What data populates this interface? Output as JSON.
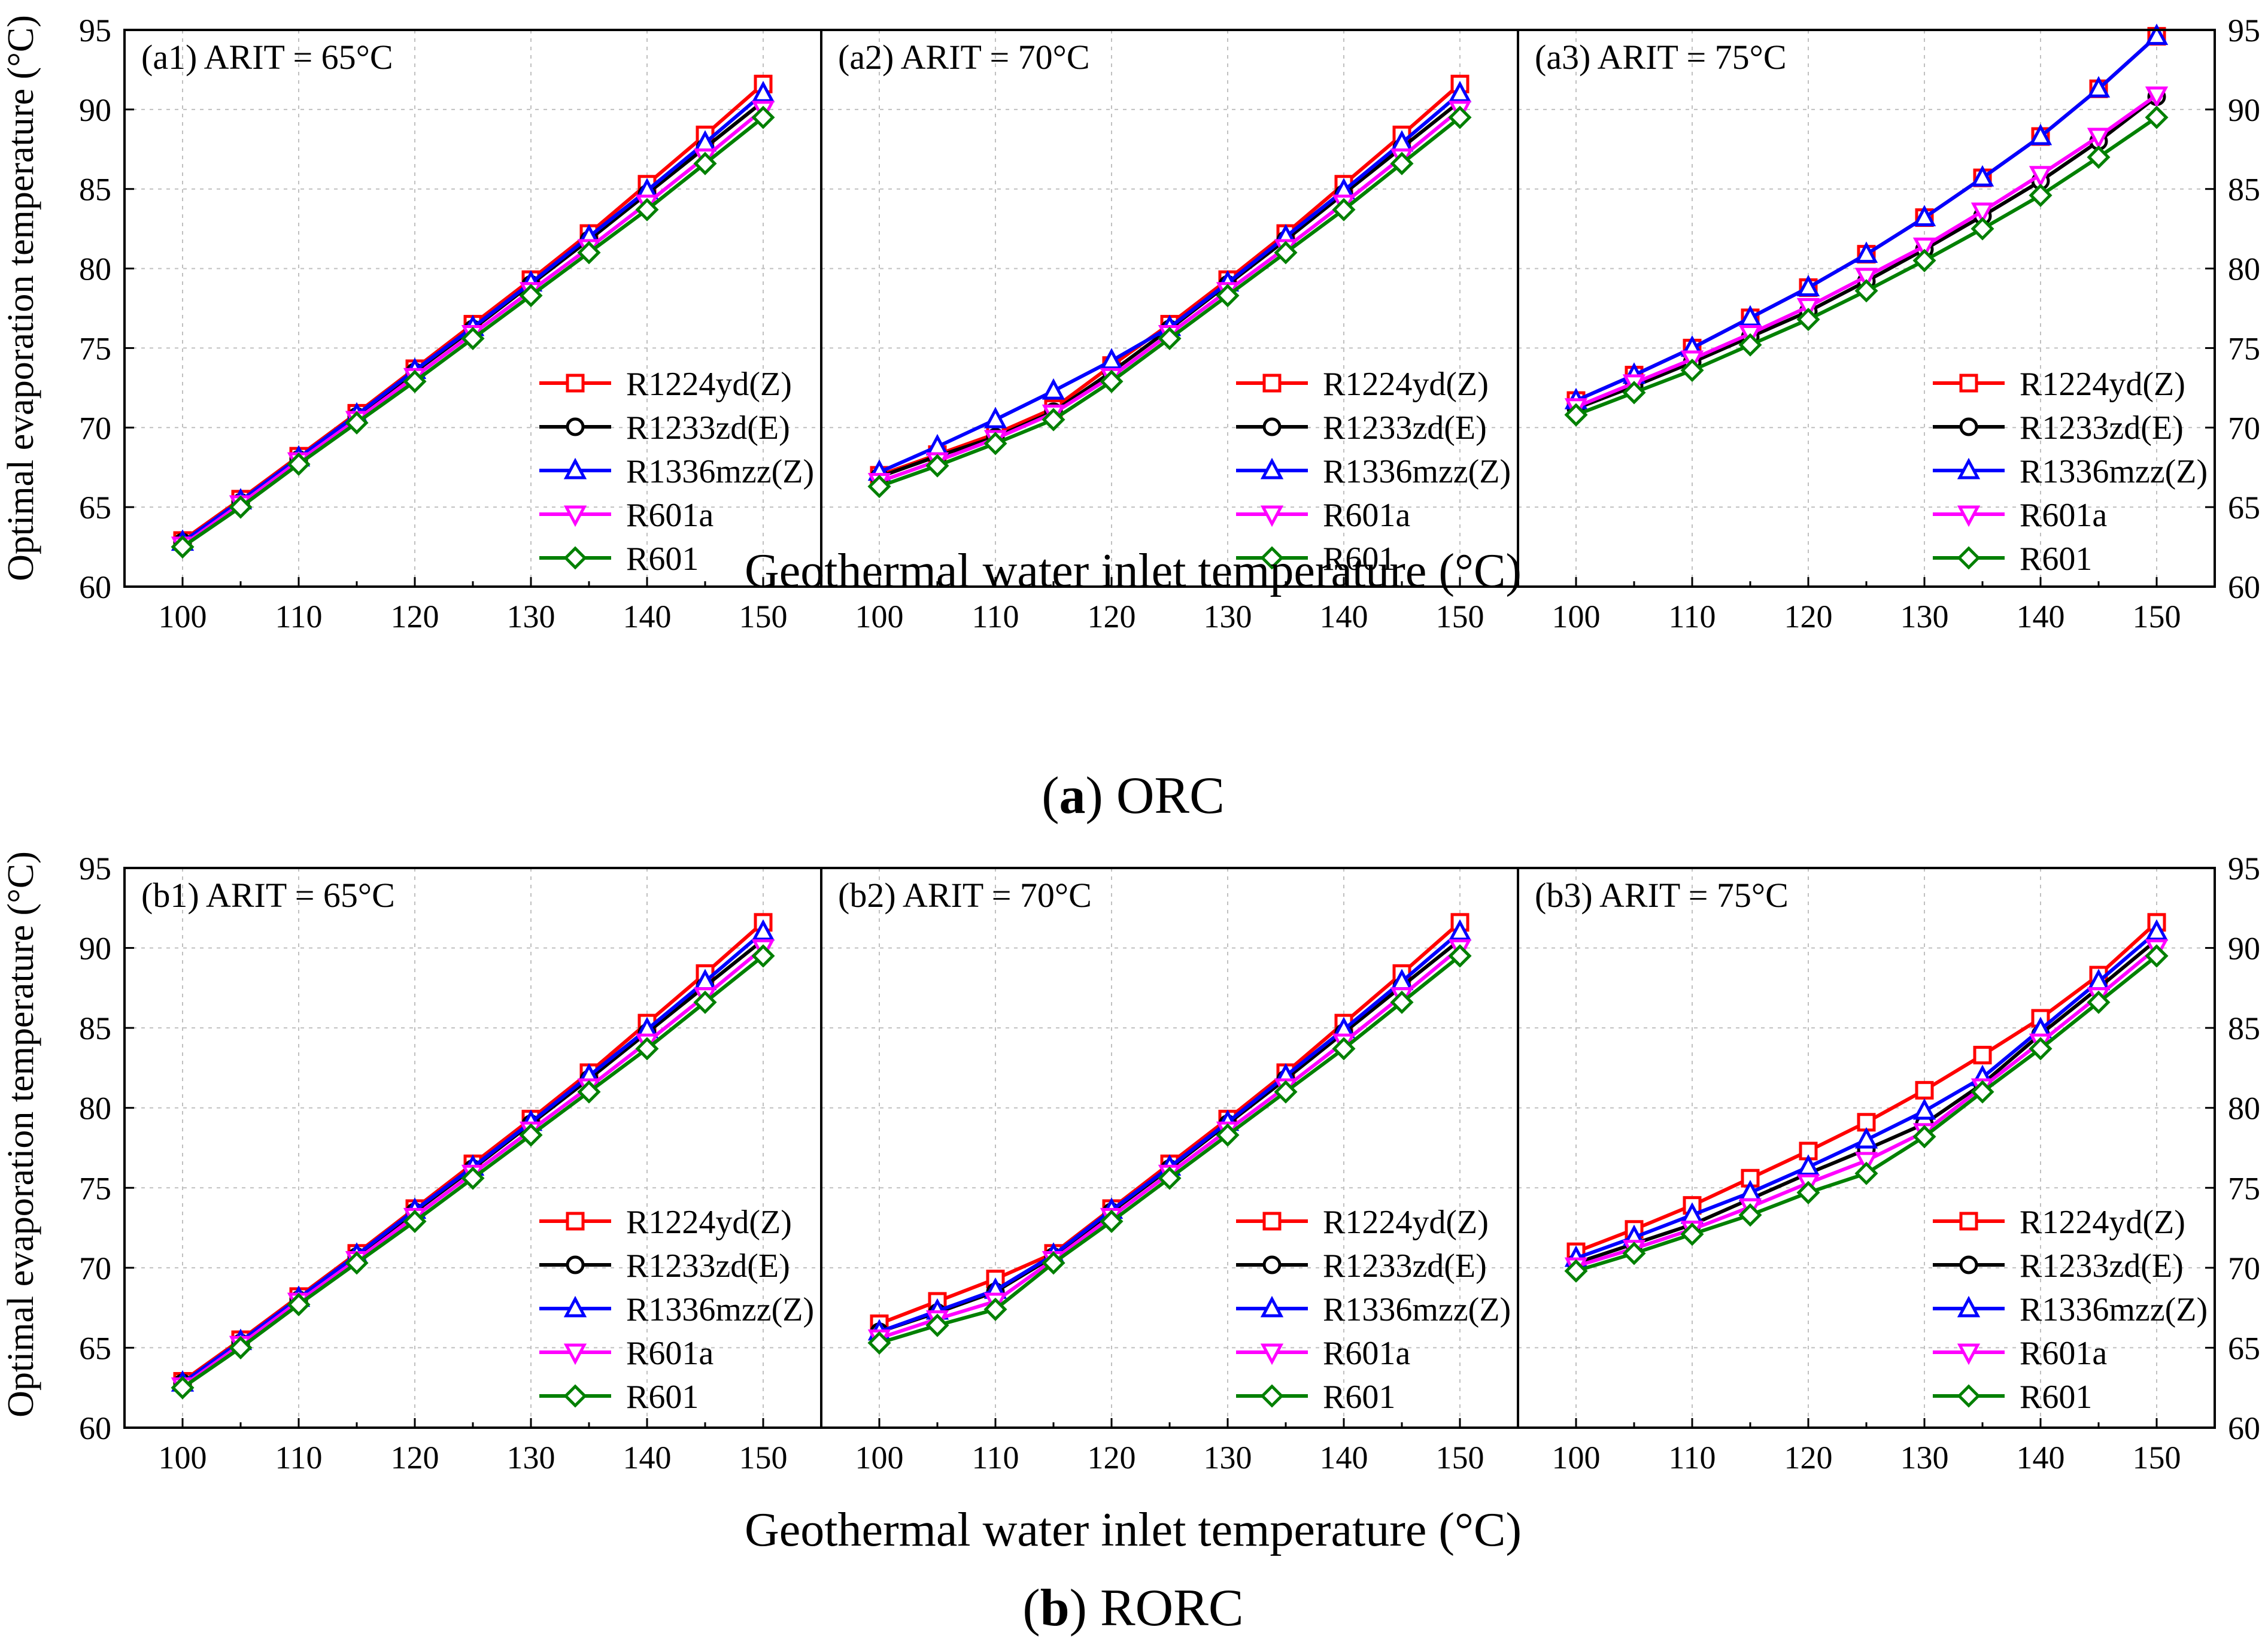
{
  "colors": {
    "R1224yd(Z)": "#ff0000",
    "R1233zd(E)": "#000000",
    "R1336mzz(Z)": "#0000ff",
    "R601a": "#ff00ff",
    "R601": "#008000",
    "grid": "#c0c0c0",
    "axis": "#000000"
  },
  "chart_data": [
    {
      "type": "line",
      "id": "a",
      "figure_label_bold": "a",
      "figure_label_text": "ORC",
      "xlabel": "Geothermal water inlet temperature (°C)",
      "ylabel": "Optimal evaporation temperature (°C)",
      "xlim": [
        95,
        155
      ],
      "ylim": [
        60,
        95
      ],
      "xticks": [
        "100",
        "110",
        "120",
        "130",
        "140",
        "150"
      ],
      "yticks": [
        "60",
        "65",
        "70",
        "75",
        "80",
        "85",
        "90",
        "95"
      ],
      "panels": [
        {
          "title": "(a1) ARIT = 65°C",
          "x": [
            100,
            105,
            110,
            115,
            120,
            125,
            130,
            135,
            140,
            145,
            150
          ],
          "series": [
            {
              "name": "R1224yd(Z)",
              "marker": "square",
              "values": [
                62.9,
                65.5,
                68.2,
                70.9,
                73.7,
                76.5,
                79.3,
                82.2,
                85.3,
                88.4,
                91.6
              ]
            },
            {
              "name": "R1233zd(E)",
              "marker": "circle",
              "values": [
                62.8,
                65.3,
                68.0,
                70.7,
                73.5,
                76.2,
                79.0,
                81.8,
                84.7,
                87.6,
                90.5
              ]
            },
            {
              "name": "R1336mzz(Z)",
              "marker": "triangle-up",
              "values": [
                62.8,
                65.4,
                68.1,
                70.8,
                73.6,
                76.3,
                79.1,
                82.0,
                84.9,
                87.9,
                91.0
              ]
            },
            {
              "name": "R601a",
              "marker": "triangle-down",
              "values": [
                62.6,
                65.2,
                67.9,
                70.5,
                73.2,
                75.9,
                78.6,
                81.3,
                84.1,
                87.0,
                90.0
              ]
            },
            {
              "name": "R601",
              "marker": "diamond",
              "values": [
                62.5,
                65.0,
                67.7,
                70.3,
                72.9,
                75.6,
                78.3,
                81.0,
                83.7,
                86.6,
                89.5
              ]
            }
          ]
        },
        {
          "title": "(a2) ARIT = 70°C",
          "x": [
            100,
            105,
            110,
            115,
            120,
            125,
            130,
            135,
            140,
            145,
            150
          ],
          "series": [
            {
              "name": "R1224yd(Z)",
              "marker": "square",
              "values": [
                67.0,
                68.3,
                69.6,
                71.2,
                73.9,
                76.5,
                79.3,
                82.2,
                85.3,
                88.4,
                91.6
              ]
            },
            {
              "name": "R1233zd(E)",
              "marker": "circle",
              "values": [
                66.9,
                68.2,
                69.4,
                71.0,
                73.5,
                76.2,
                79.0,
                81.8,
                84.7,
                87.6,
                90.5
              ]
            },
            {
              "name": "R1336mzz(Z)",
              "marker": "triangle-up",
              "values": [
                67.2,
                68.8,
                70.5,
                72.3,
                74.2,
                76.3,
                79.1,
                82.0,
                84.9,
                87.9,
                91.0
              ]
            },
            {
              "name": "R601a",
              "marker": "triangle-down",
              "values": [
                66.6,
                67.9,
                69.3,
                70.9,
                73.2,
                75.9,
                78.6,
                81.3,
                84.1,
                87.0,
                90.0
              ]
            },
            {
              "name": "R601",
              "marker": "diamond",
              "values": [
                66.3,
                67.6,
                69.0,
                70.5,
                72.9,
                75.6,
                78.3,
                81.0,
                83.7,
                86.6,
                89.5
              ]
            }
          ]
        },
        {
          "title": "(a3) ARIT =  75°C",
          "x": [
            100,
            105,
            110,
            115,
            120,
            125,
            130,
            135,
            140,
            145,
            150
          ],
          "series": [
            {
              "name": "R1224yd(Z)",
              "marker": "square",
              "values": [
                71.7,
                73.3,
                75.0,
                76.9,
                78.8,
                80.9,
                83.2,
                85.7,
                88.3,
                91.3,
                94.6
              ]
            },
            {
              "name": "R1233zd(E)",
              "marker": "circle",
              "values": [
                71.2,
                72.6,
                74.1,
                75.7,
                77.3,
                79.2,
                81.2,
                83.3,
                85.5,
                88.0,
                90.8
              ]
            },
            {
              "name": "R1336mzz(Z)",
              "marker": "triangle-up",
              "values": [
                71.7,
                73.3,
                75.0,
                76.9,
                78.8,
                80.9,
                83.2,
                85.7,
                88.3,
                91.3,
                94.6
              ]
            },
            {
              "name": "R601a",
              "marker": "triangle-down",
              "values": [
                71.3,
                72.8,
                74.3,
                75.9,
                77.6,
                79.5,
                81.4,
                83.6,
                85.9,
                88.3,
                90.9
              ]
            },
            {
              "name": "R601",
              "marker": "diamond",
              "values": [
                70.8,
                72.2,
                73.6,
                75.2,
                76.8,
                78.6,
                80.5,
                82.5,
                84.6,
                87.0,
                89.5
              ]
            }
          ]
        }
      ]
    },
    {
      "type": "line",
      "id": "b",
      "figure_label_bold": "b",
      "figure_label_text": "RORC",
      "xlabel": "Geothermal water inlet temperature (°C)",
      "ylabel": "Optimal evaporation temperature (°C)",
      "xlim": [
        95,
        155
      ],
      "ylim": [
        60,
        95
      ],
      "xticks": [
        "100",
        "110",
        "120",
        "130",
        "140",
        "150"
      ],
      "yticks": [
        "60",
        "65",
        "70",
        "75",
        "80",
        "85",
        "90",
        "95"
      ],
      "panels": [
        {
          "title": "(b1) ARIT = 65°C",
          "x": [
            100,
            105,
            110,
            115,
            120,
            125,
            130,
            135,
            140,
            145,
            150
          ],
          "series": [
            {
              "name": "R1224yd(Z)",
              "marker": "square",
              "values": [
                62.9,
                65.5,
                68.2,
                70.9,
                73.7,
                76.5,
                79.3,
                82.2,
                85.3,
                88.4,
                91.6
              ]
            },
            {
              "name": "R1233zd(E)",
              "marker": "circle",
              "values": [
                62.8,
                65.3,
                68.0,
                70.7,
                73.5,
                76.2,
                79.0,
                81.8,
                84.7,
                87.6,
                90.5
              ]
            },
            {
              "name": "R1336mzz(Z)",
              "marker": "triangle-up",
              "values": [
                62.8,
                65.4,
                68.1,
                70.8,
                73.6,
                76.3,
                79.1,
                82.0,
                84.9,
                87.9,
                91.0
              ]
            },
            {
              "name": "R601a",
              "marker": "triangle-down",
              "values": [
                62.6,
                65.2,
                67.9,
                70.5,
                73.2,
                75.9,
                78.6,
                81.3,
                84.1,
                87.0,
                90.0
              ]
            },
            {
              "name": "R601",
              "marker": "diamond",
              "values": [
                62.5,
                65.0,
                67.7,
                70.3,
                72.9,
                75.6,
                78.3,
                81.0,
                83.7,
                86.6,
                89.5
              ]
            }
          ]
        },
        {
          "title": "(b2) ARIT = 70°C",
          "x": [
            100,
            105,
            110,
            115,
            120,
            125,
            130,
            135,
            140,
            145,
            150
          ],
          "series": [
            {
              "name": "R1224yd(Z)",
              "marker": "square",
              "values": [
                66.5,
                67.9,
                69.3,
                70.9,
                73.7,
                76.5,
                79.3,
                82.2,
                85.3,
                88.4,
                91.6
              ]
            },
            {
              "name": "R1233zd(E)",
              "marker": "circle",
              "values": [
                66.0,
                67.2,
                68.5,
                70.7,
                73.5,
                76.2,
                79.0,
                81.8,
                84.7,
                87.6,
                90.5
              ]
            },
            {
              "name": "R1336mzz(Z)",
              "marker": "triangle-up",
              "values": [
                66.0,
                67.3,
                68.6,
                70.8,
                73.6,
                76.3,
                79.1,
                82.0,
                84.9,
                87.9,
                91.0
              ]
            },
            {
              "name": "R601a",
              "marker": "triangle-down",
              "values": [
                65.6,
                66.8,
                67.9,
                70.5,
                73.2,
                75.9,
                78.6,
                81.3,
                84.1,
                87.0,
                90.0
              ]
            },
            {
              "name": "R601",
              "marker": "diamond",
              "values": [
                65.3,
                66.4,
                67.4,
                70.3,
                72.9,
                75.6,
                78.3,
                81.0,
                83.7,
                86.6,
                89.5
              ]
            }
          ]
        },
        {
          "title": "(b3) ARIT = 75°C",
          "x": [
            100,
            105,
            110,
            115,
            120,
            125,
            130,
            135,
            140,
            145,
            150
          ],
          "series": [
            {
              "name": "R1224yd(Z)",
              "marker": "square",
              "values": [
                71.0,
                72.4,
                73.9,
                75.6,
                77.3,
                79.1,
                81.1,
                83.3,
                85.6,
                88.3,
                91.6
              ]
            },
            {
              "name": "R1233zd(E)",
              "marker": "circle",
              "values": [
                70.3,
                71.5,
                72.7,
                74.3,
                75.9,
                77.4,
                79.0,
                81.5,
                84.6,
                87.5,
                90.5
              ]
            },
            {
              "name": "R1336mzz(Z)",
              "marker": "triangle-up",
              "values": [
                70.6,
                71.9,
                73.3,
                74.7,
                76.3,
                78.0,
                79.8,
                81.9,
                84.9,
                87.9,
                91.0
              ]
            },
            {
              "name": "R601a",
              "marker": "triangle-down",
              "values": [
                70.1,
                71.2,
                72.4,
                73.8,
                75.3,
                76.7,
                78.5,
                81.3,
                84.1,
                87.0,
                90.0
              ]
            },
            {
              "name": "R601",
              "marker": "diamond",
              "values": [
                69.8,
                70.9,
                72.1,
                73.3,
                74.7,
                75.9,
                78.2,
                81.0,
                83.7,
                86.6,
                89.5
              ]
            }
          ]
        }
      ]
    }
  ]
}
